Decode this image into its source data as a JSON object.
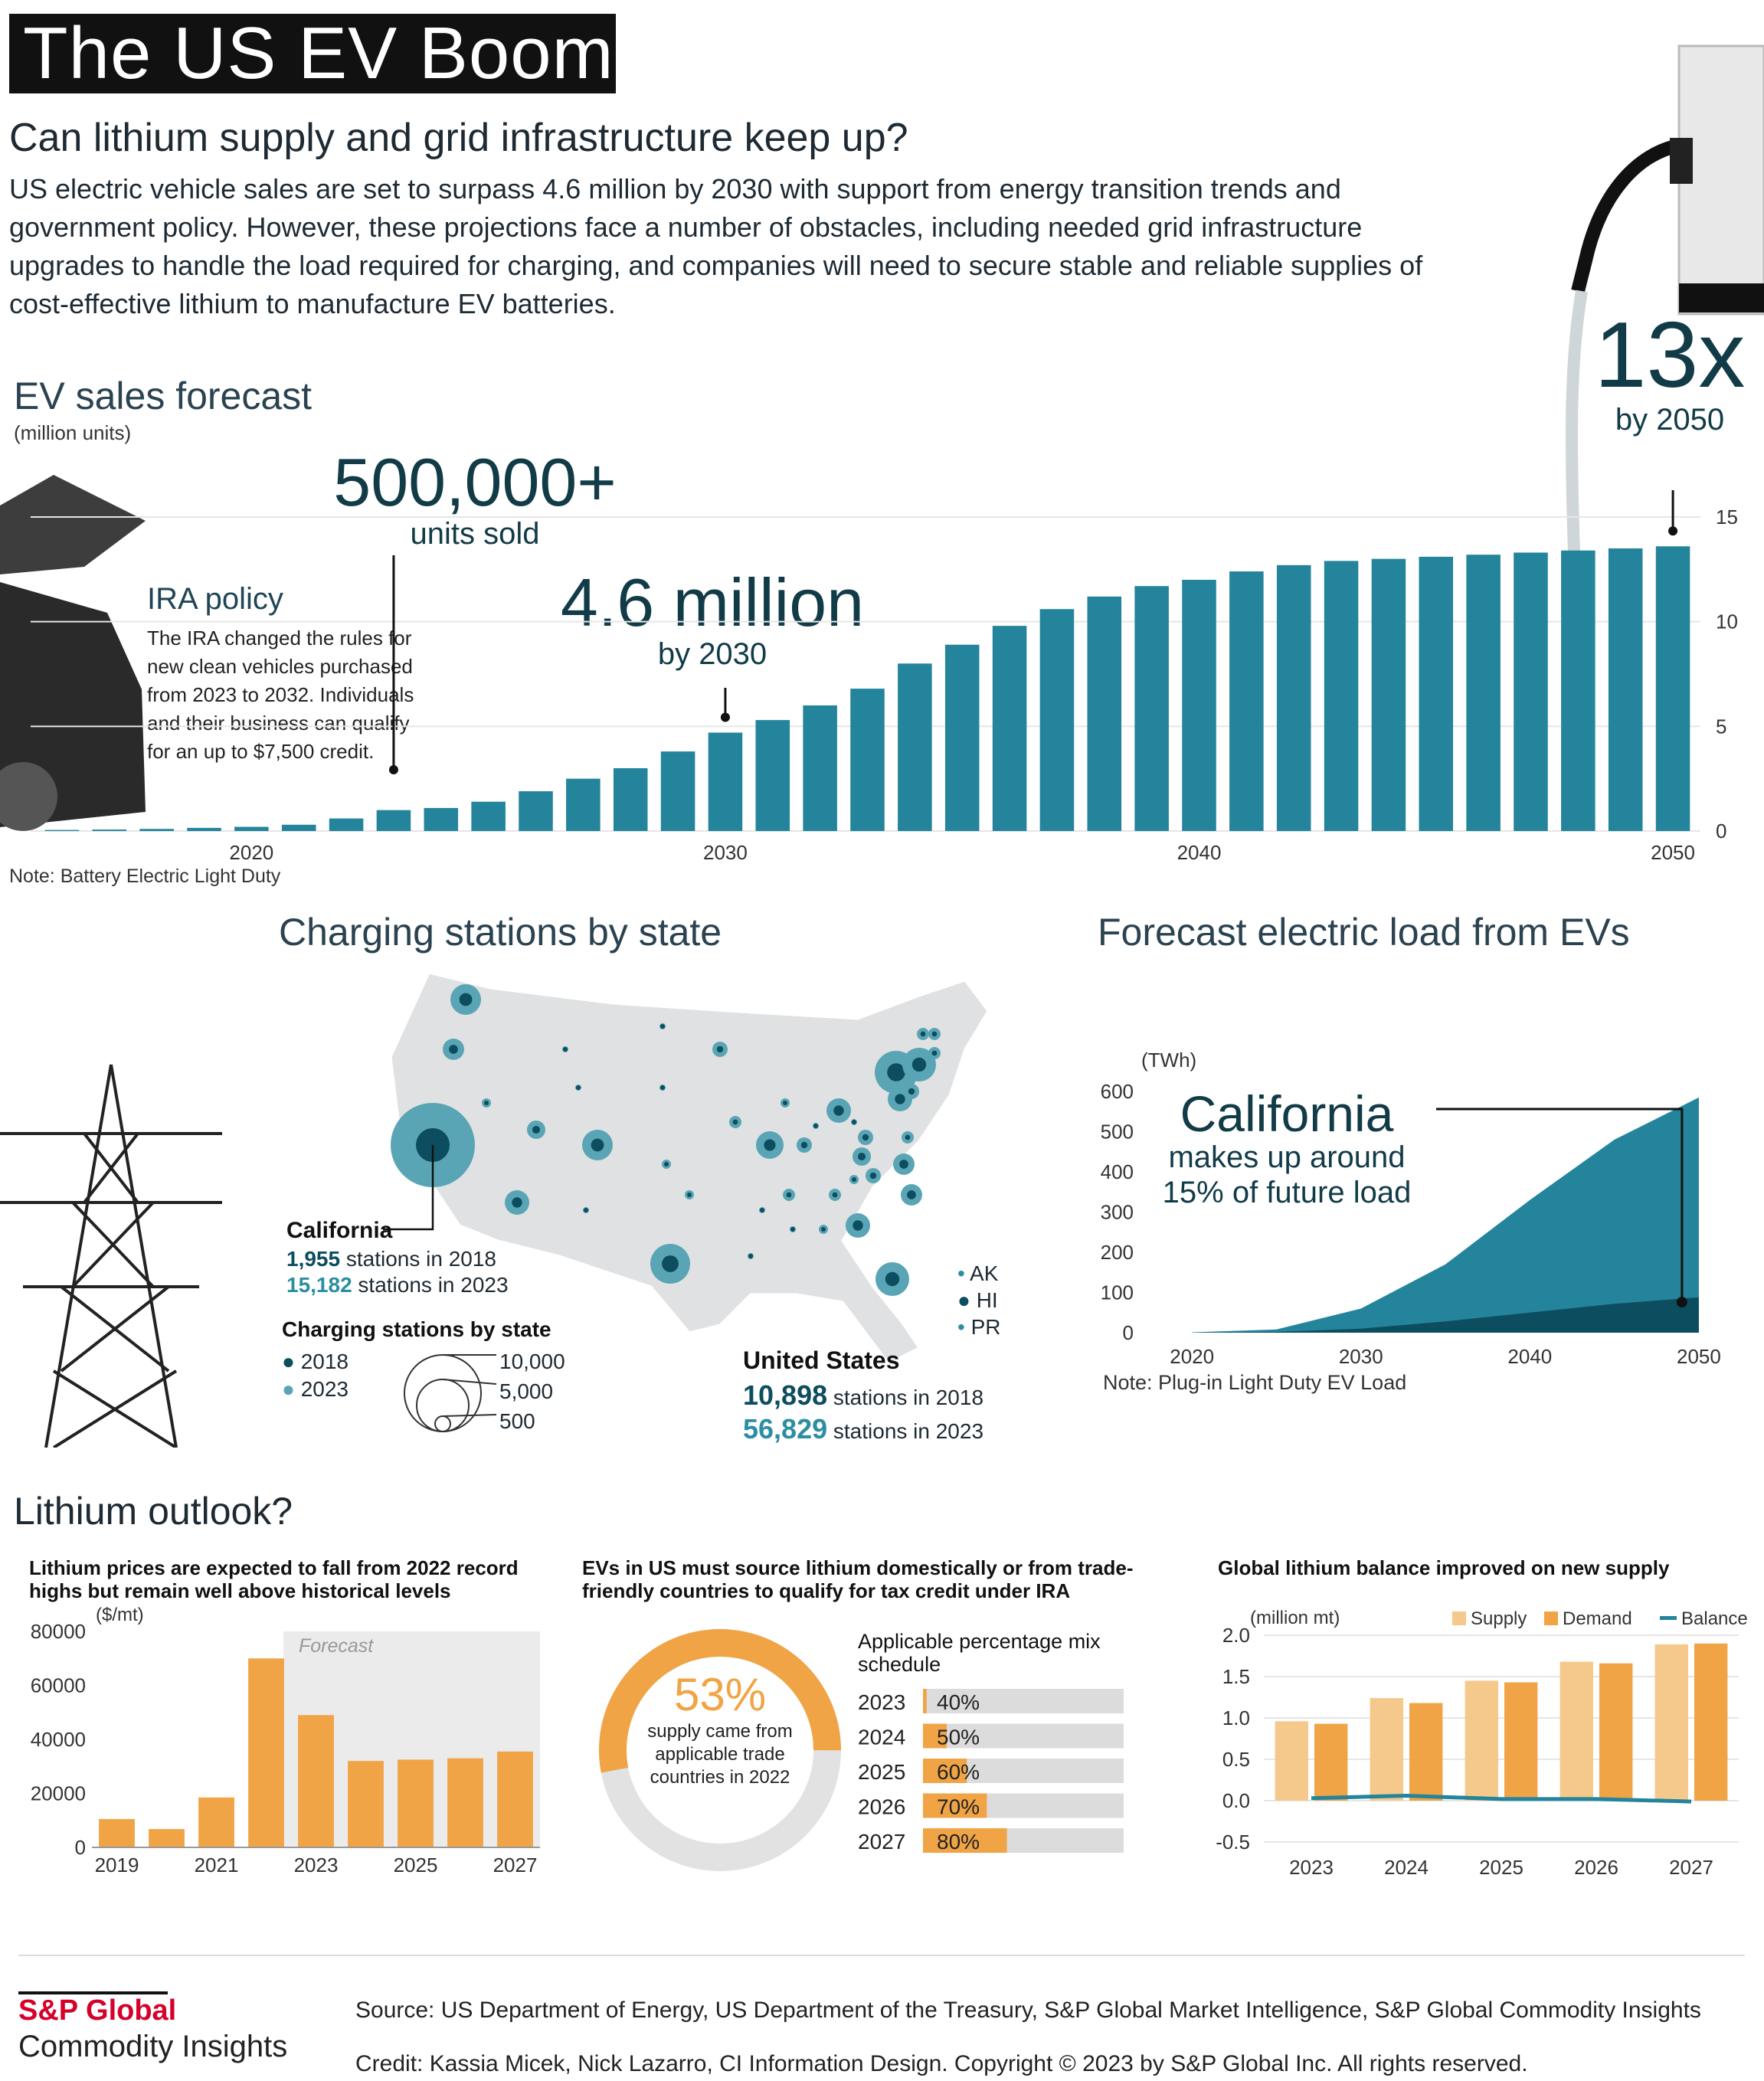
{
  "header": {
    "title": "The US EV Boom",
    "subtitle": "Can lithium supply and grid infrastructure keep up?",
    "intro": "US electric vehicle sales are set to surpass 4.6 million by 2030 with support from energy transition trends and government policy. However, these projections face a number of obstacles, including needed grid infrastructure upgrades to handle the load required for charging, and companies will need to secure stable and reliable supplies of cost-effective lithium to manufacture EV batteries."
  },
  "ev_sales": {
    "title": "EV sales forecast",
    "unit": "(million units)",
    "note": "Note: Battery Electric Light Duty",
    "callout_13x": {
      "value": "13x",
      "sub": "by 2050"
    },
    "callout_500k": {
      "value": "500,000+",
      "sub": "units sold"
    },
    "callout_46m": {
      "value": "4.6 million",
      "sub": "by 2030"
    },
    "ira": {
      "title": "IRA policy",
      "body": "The IRA changed the rules for new clean vehicles purchased from 2023 to 2032. Individuals and their business can qualify for an up to $7,500 credit."
    }
  },
  "charging": {
    "title": "Charging stations by state",
    "california": {
      "name": "California",
      "n2018": "1,955",
      "n2018_label": "stations in 2018",
      "n2023": "15,182",
      "n2023_label": "stations in 2023"
    },
    "legend_title": "Charging stations by state",
    "legend_years": [
      "2018",
      "2023"
    ],
    "legend_sizes": [
      "10,000",
      "5,000",
      "500"
    ],
    "territories": [
      "AK",
      "HI",
      "PR"
    ],
    "us": {
      "name": "United States",
      "n2018": "10,898",
      "n2018_label": "stations in 2018",
      "n2023": "56,829",
      "n2023_label": "stations in 2023"
    }
  },
  "load": {
    "title": "Forecast electric load from EVs",
    "callout_title": "California",
    "callout_sub1": "makes up around",
    "callout_sub2": "15% of future load",
    "note": "Note: Plug-in Light Duty EV  Load"
  },
  "lithium": {
    "title": "Lithium outlook?",
    "prices_title": "Lithium prices are expected to fall from 2022 record highs but remain well above historical levels",
    "donut_title": "EVs in US must source lithium domestically or from trade-friendly countries to qualify for tax credit under IRA",
    "donut_value": "53%",
    "donut_text": "supply came from applicable trade countries in 2022",
    "schedule_title": "Applicable percentage mix schedule",
    "balance_title": "Global lithium balance improved on new supply"
  },
  "footer": {
    "brand1": "S&P Global",
    "brand2": "Commodity Insights",
    "source": "Source: US Department of Energy, US Department of the Treasury, S&P Global Market Intelligence, S&P Global Commodity Insights",
    "credit": "Credit: Kassia Micek, Nick Lazarro, CI Information Design.  Copyright © 2023 by S&P Global Inc. All rights reserved."
  },
  "colors": {
    "teal": "#23849b",
    "teal_dark": "#0d4d60",
    "teal_light": "#5aa5b5",
    "orange": "#f0a446",
    "orange_light": "#f5c98b",
    "grey": "#dcdcdc"
  },
  "chart_data": [
    {
      "id": "ev_sales",
      "type": "bar",
      "title": "EV sales forecast",
      "ylabel": "(million units)",
      "ylim": [
        0,
        15
      ],
      "yticks": [
        0,
        5,
        10,
        15
      ],
      "xticks": [
        "2020",
        "2030",
        "2040",
        "2050"
      ],
      "x": [
        2016,
        2017,
        2018,
        2019,
        2020,
        2021,
        2022,
        2023,
        2024,
        2025,
        2026,
        2027,
        2028,
        2029,
        2030,
        2031,
        2032,
        2033,
        2034,
        2035,
        2036,
        2037,
        2038,
        2039,
        2040,
        2041,
        2042,
        2043,
        2044,
        2045,
        2046,
        2047,
        2048,
        2049,
        2050
      ],
      "values": [
        0.05,
        0.07,
        0.1,
        0.15,
        0.2,
        0.3,
        0.6,
        1.0,
        1.1,
        1.4,
        1.9,
        2.5,
        3.0,
        3.8,
        4.7,
        5.3,
        6.0,
        6.8,
        8.0,
        8.9,
        9.8,
        10.6,
        11.2,
        11.7,
        12.0,
        12.4,
        12.7,
        12.9,
        13.0,
        13.1,
        13.2,
        13.3,
        13.4,
        13.5,
        13.6
      ]
    },
    {
      "id": "electric_load",
      "type": "area",
      "title": "Forecast electric load from EVs",
      "ylabel": "(TWh)",
      "ylim": [
        0,
        600
      ],
      "yticks": [
        "600",
        "500",
        "400",
        "300",
        "200",
        "100",
        "0"
      ],
      "xticks": [
        "2020",
        "2030",
        "2040",
        "2050"
      ],
      "x": [
        2020,
        2025,
        2030,
        2035,
        2040,
        2045,
        2050
      ],
      "series": [
        {
          "name": "US",
          "values": [
            1,
            8,
            60,
            170,
            330,
            480,
            585
          ]
        },
        {
          "name": "California",
          "values": [
            0,
            2,
            10,
            28,
            50,
            72,
            88
          ]
        }
      ]
    },
    {
      "id": "lithium_prices",
      "type": "bar",
      "title": "Lithium prices are expected to fall from 2022 record highs but remain well above historical levels",
      "ylabel": "($/mt)",
      "ylim": [
        0,
        80000
      ],
      "yticks": [
        "80000",
        "60000",
        "40000",
        "20000",
        "0"
      ],
      "annotation": "Forecast",
      "categories": [
        "2019",
        "2020",
        "2021",
        "2022",
        "2023",
        "2024",
        "2025",
        "2026",
        "2027"
      ],
      "tick_labels": [
        "2019",
        "2021",
        "2023",
        "2025",
        "2027"
      ],
      "values": [
        10500,
        6800,
        18500,
        70000,
        49000,
        32000,
        32500,
        33000,
        35500
      ]
    },
    {
      "id": "schedule",
      "type": "bar",
      "title": "Applicable percentage mix schedule",
      "categories": [
        "2023",
        "2024",
        "2025",
        "2026",
        "2027"
      ],
      "values": [
        40,
        50,
        60,
        70,
        80
      ],
      "labels": [
        "40%",
        "50%",
        "60%",
        "70%",
        "80%"
      ]
    },
    {
      "id": "lithium_balance",
      "type": "bar",
      "title": "Global lithium balance improved on new supply",
      "ylabel": "(million mt)",
      "ylim": [
        -0.5,
        2.0
      ],
      "yticks": [
        "2.0",
        "1.5",
        "1.0",
        "0.5",
        "0.0",
        "-0.5"
      ],
      "categories": [
        "2023",
        "2024",
        "2025",
        "2026",
        "2027"
      ],
      "legend": [
        "Supply",
        "Demand",
        "Balance"
      ],
      "series": [
        {
          "name": "Supply",
          "values": [
            0.96,
            1.24,
            1.45,
            1.68,
            1.89
          ]
        },
        {
          "name": "Demand",
          "values": [
            0.93,
            1.18,
            1.43,
            1.66,
            1.9
          ]
        },
        {
          "name": "Balance",
          "values": [
            0.03,
            0.06,
            0.02,
            0.02,
            -0.01
          ]
        }
      ]
    }
  ]
}
